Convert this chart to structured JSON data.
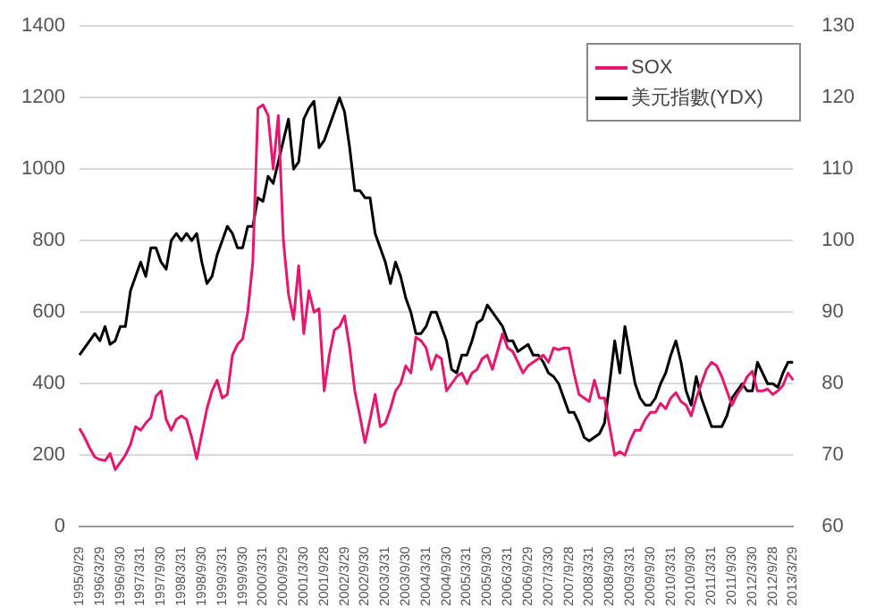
{
  "chart_data": {
    "type": "line",
    "categories": [
      "1995/9/29",
      null,
      null,
      null,
      "1996/3/29",
      null,
      null,
      null,
      "1996/9/30",
      null,
      null,
      null,
      "1997/3/31",
      null,
      null,
      null,
      "1997/9/30",
      null,
      null,
      null,
      "1998/3/31",
      null,
      null,
      null,
      "1998/9/30",
      null,
      null,
      null,
      "1999/3/31",
      null,
      null,
      null,
      "1999/9/30",
      null,
      null,
      null,
      "2000/3/31",
      null,
      null,
      null,
      "2000/9/29",
      null,
      null,
      null,
      "2001/3/30",
      null,
      null,
      null,
      "2001/9/28",
      null,
      null,
      null,
      "2002/3/29",
      null,
      null,
      null,
      "2002/9/30",
      null,
      null,
      null,
      "2003/3/31",
      null,
      null,
      null,
      "2003/9/30",
      null,
      null,
      null,
      "2004/3/31",
      null,
      null,
      null,
      "2004/9/30",
      null,
      null,
      null,
      "2005/3/31",
      null,
      null,
      null,
      "2005/9/30",
      null,
      null,
      null,
      "2006/3/31",
      null,
      null,
      null,
      "2006/9/29",
      null,
      null,
      null,
      "2007/3/30",
      null,
      null,
      null,
      "2007/9/28",
      null,
      null,
      null,
      "2008/3/31",
      null,
      null,
      null,
      "2008/9/30",
      null,
      null,
      null,
      "2009/3/31",
      null,
      null,
      null,
      "2009/9/30",
      null,
      null,
      null,
      "2010/3/31",
      null,
      null,
      null,
      "2010/9/30",
      null,
      null,
      null,
      "2011/3/31",
      null,
      null,
      null,
      "2011/9/30",
      null,
      null,
      null,
      "2012/3/30",
      null,
      null,
      null,
      "2012/9/28",
      null,
      null,
      null,
      "2013/3/29"
    ],
    "series": [
      {
        "name": "SOX",
        "color": "#e6176e",
        "values": [
          275,
          250,
          220,
          195,
          188,
          185,
          205,
          160,
          180,
          200,
          230,
          280,
          270,
          290,
          305,
          365,
          380,
          300,
          270,
          300,
          310,
          300,
          250,
          190,
          260,
          330,
          380,
          410,
          360,
          370,
          480,
          510,
          525,
          600,
          740,
          1170,
          1180,
          1150,
          1000,
          1150,
          800,
          650,
          580,
          730,
          540,
          660,
          600,
          610,
          380,
          480,
          550,
          560,
          590,
          500,
          380,
          310,
          235,
          300,
          370,
          280,
          290,
          330,
          380,
          400,
          450,
          430,
          530,
          520,
          500,
          440,
          480,
          470,
          380,
          400,
          420,
          430,
          400,
          430,
          440,
          470,
          480,
          440,
          490,
          540,
          500,
          490,
          460,
          430,
          450,
          460,
          470,
          480,
          460,
          500,
          495,
          500,
          500,
          430,
          370,
          360,
          350,
          410,
          360,
          360,
          280,
          200,
          210,
          200,
          240,
          270,
          270,
          300,
          320,
          320,
          345,
          330,
          360,
          375,
          350,
          340,
          310,
          360,
          400,
          440,
          460,
          450,
          420,
          380,
          340,
          370,
          390,
          420,
          435,
          380,
          380,
          385,
          370,
          380,
          395,
          430,
          410
        ]
      },
      {
        "name": "美元指數(YDX)",
        "color": "#000000",
        "axis": "y2",
        "values": [
          84,
          85,
          86,
          87,
          86,
          88,
          85.5,
          86,
          88,
          88,
          93,
          95,
          97,
          95,
          99,
          99,
          97,
          96,
          100,
          101,
          100,
          101,
          100,
          101,
          97,
          94,
          95,
          98,
          100,
          102,
          101,
          99,
          99,
          102,
          102,
          106,
          105.5,
          109,
          108,
          111,
          114,
          117,
          110,
          111,
          117,
          118.5,
          119.5,
          113,
          114,
          116,
          118,
          120,
          118,
          113,
          107,
          107,
          106,
          106,
          101,
          99,
          97,
          94,
          97,
          95,
          92,
          90,
          87,
          87,
          88,
          90,
          90,
          88,
          86,
          82,
          81.5,
          84,
          84,
          86,
          88.5,
          89,
          91,
          90,
          89,
          88,
          86,
          86,
          84.5,
          85,
          85.5,
          84,
          84,
          83,
          81.5,
          81,
          80,
          78,
          76,
          76,
          74.5,
          72.5,
          72,
          72.5,
          73,
          74.5,
          80,
          86,
          81.5,
          88,
          84,
          80,
          78,
          77,
          77,
          78,
          80,
          81.5,
          84,
          86,
          83,
          79,
          77,
          81,
          78,
          76,
          74,
          74,
          74,
          75.5,
          78,
          79,
          80,
          79,
          79,
          83,
          81.5,
          80,
          80,
          79.5,
          81.5,
          83,
          83
        ]
      }
    ],
    "ylim": [
      0,
      1400
    ],
    "yticks": [
      0,
      200,
      400,
      600,
      800,
      1000,
      1200,
      1400
    ],
    "y2lim": [
      60,
      130
    ],
    "y2ticks": [
      60,
      70,
      80,
      90,
      100,
      110,
      120,
      130
    ],
    "grid": "y",
    "legend": "top right",
    "marker": "none",
    "line_style": "solid"
  }
}
